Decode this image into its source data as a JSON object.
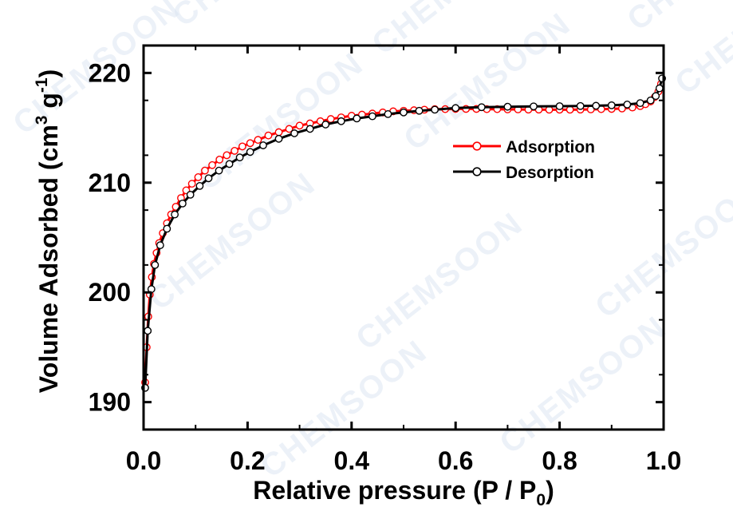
{
  "watermark": "CHEMSOON",
  "chart_data": {
    "type": "line",
    "xlabel_main": "Relative pressure (P / P",
    "xlabel_sub": "0",
    "xlabel_end": ")",
    "ylabel_main": "Volume Adsorbed (cm",
    "ylabel_sup1": "3",
    "ylabel_mid": " g",
    "ylabel_sup2": "-1",
    "ylabel_end": ")",
    "xlim": [
      0.0,
      1.0
    ],
    "ylim": [
      187.5,
      222.5
    ],
    "xticks": [
      0.0,
      0.2,
      0.4,
      0.6,
      0.8,
      1.0
    ],
    "xtick_labels": [
      "0.0",
      "0.2",
      "0.4",
      "0.6",
      "0.8",
      "1.0"
    ],
    "yticks": [
      190,
      200,
      210,
      220
    ],
    "ytick_labels": [
      "190",
      "200",
      "210",
      "220"
    ],
    "legend_position": "upper-right",
    "series": [
      {
        "name": "Adsorption",
        "color": "#ff0000",
        "marker": "open-circle",
        "x": [
          0.003,
          0.006,
          0.009,
          0.012,
          0.016,
          0.02,
          0.025,
          0.03,
          0.037,
          0.045,
          0.053,
          0.062,
          0.072,
          0.082,
          0.093,
          0.105,
          0.118,
          0.132,
          0.146,
          0.16,
          0.175,
          0.19,
          0.205,
          0.22,
          0.24,
          0.26,
          0.28,
          0.3,
          0.32,
          0.34,
          0.36,
          0.38,
          0.4,
          0.42,
          0.44,
          0.46,
          0.48,
          0.5,
          0.52,
          0.54,
          0.56,
          0.58,
          0.6,
          0.62,
          0.64,
          0.66,
          0.68,
          0.7,
          0.72,
          0.74,
          0.76,
          0.78,
          0.8,
          0.82,
          0.84,
          0.86,
          0.88,
          0.9,
          0.92,
          0.94,
          0.955,
          0.965,
          0.975,
          0.983,
          0.99,
          0.995
        ],
        "y": [
          191.8,
          195.0,
          197.8,
          199.8,
          201.4,
          202.6,
          203.6,
          204.5,
          205.4,
          206.3,
          207.1,
          207.8,
          208.6,
          209.3,
          209.9,
          210.5,
          211.1,
          211.6,
          212.1,
          212.5,
          212.9,
          213.3,
          213.6,
          213.9,
          214.3,
          214.6,
          214.9,
          215.2,
          215.4,
          215.6,
          215.8,
          215.95,
          216.1,
          216.2,
          216.3,
          216.4,
          216.5,
          216.55,
          216.6,
          216.65,
          216.7,
          216.7,
          216.72,
          216.72,
          216.72,
          216.7,
          216.7,
          216.68,
          216.68,
          216.66,
          216.66,
          216.65,
          216.65,
          216.65,
          216.66,
          216.68,
          216.7,
          216.72,
          216.76,
          216.85,
          216.98,
          217.15,
          217.4,
          217.8,
          218.3,
          219.0
        ]
      },
      {
        "name": "Desorption",
        "color": "#000000",
        "marker": "open-circle",
        "x": [
          0.003,
          0.008,
          0.015,
          0.022,
          0.032,
          0.045,
          0.06,
          0.075,
          0.09,
          0.108,
          0.125,
          0.145,
          0.165,
          0.185,
          0.205,
          0.23,
          0.26,
          0.29,
          0.32,
          0.35,
          0.38,
          0.41,
          0.44,
          0.47,
          0.5,
          0.53,
          0.56,
          0.6,
          0.65,
          0.7,
          0.75,
          0.8,
          0.84,
          0.87,
          0.9,
          0.93,
          0.955,
          0.975,
          0.985,
          0.992,
          0.997
        ],
        "y": [
          191.3,
          196.5,
          200.3,
          202.5,
          204.3,
          205.8,
          207.1,
          208.1,
          208.9,
          209.7,
          210.4,
          211.1,
          211.7,
          212.3,
          212.8,
          213.4,
          214.0,
          214.5,
          214.9,
          215.3,
          215.6,
          215.85,
          216.05,
          216.25,
          216.4,
          216.55,
          216.65,
          216.8,
          216.88,
          216.92,
          216.95,
          216.97,
          216.99,
          217.01,
          217.05,
          217.12,
          217.25,
          217.5,
          217.9,
          218.6,
          219.5
        ]
      }
    ]
  }
}
